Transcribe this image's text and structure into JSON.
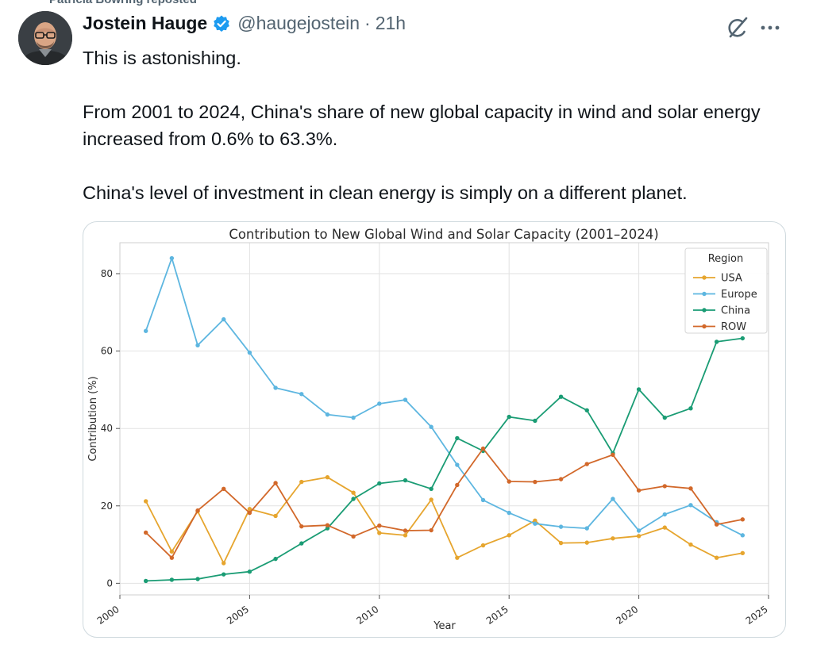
{
  "repost": {
    "label": "Patricia Bowring reposted"
  },
  "author": {
    "name": "Jostein Hauge",
    "handle": "@haugejostein",
    "separator": "·",
    "time": "21h",
    "verified_icon": "verified-badge-icon"
  },
  "actions": {
    "grok_icon": "grok-icon",
    "more_icon": "more-options-icon"
  },
  "tweet": {
    "line1": "This is astonishing.",
    "line2": "From 2001 to 2024, China's share of new global capacity in wind and solar energy increased from 0.6% to 63.3%.",
    "line3": "China's level of investment in clean energy is simply on a different planet."
  },
  "chart_data": {
    "type": "line",
    "title": "Contribution to New Global Wind and Solar Capacity (2001–2024)",
    "xlabel": "Year",
    "ylabel": "Contribution (%)",
    "xlim": [
      2000,
      2025
    ],
    "ylim": [
      -3,
      88
    ],
    "xticks": [
      2000,
      2005,
      2010,
      2015,
      2020,
      2025
    ],
    "yticks": [
      0,
      20,
      40,
      60,
      80
    ],
    "grid": true,
    "legend": {
      "title": "Region",
      "placement": "top-right"
    },
    "x": [
      2001,
      2002,
      2003,
      2004,
      2005,
      2006,
      2007,
      2008,
      2009,
      2010,
      2011,
      2012,
      2013,
      2014,
      2015,
      2016,
      2017,
      2018,
      2019,
      2020,
      2021,
      2022,
      2023,
      2024
    ],
    "series": [
      {
        "name": "USA",
        "color": "#E6A52E",
        "values": [
          21.2,
          8.2,
          18.6,
          5.2,
          19.2,
          17.4,
          26.2,
          27.4,
          23.4,
          13.0,
          12.4,
          21.6,
          6.6,
          9.8,
          12.4,
          16.2,
          10.4,
          10.5,
          11.6,
          12.2,
          14.4,
          10.0,
          6.6,
          7.8
        ]
      },
      {
        "name": "Europe",
        "color": "#5DB6E0",
        "values": [
          65.2,
          84.0,
          61.5,
          68.2,
          59.6,
          50.5,
          48.9,
          43.6,
          42.8,
          46.4,
          47.4,
          40.4,
          30.6,
          21.5,
          18.2,
          15.4,
          14.6,
          14.2,
          21.8,
          13.6,
          17.8,
          20.2,
          15.8,
          12.4
        ]
      },
      {
        "name": "China",
        "color": "#1A9C74",
        "values": [
          0.6,
          0.9,
          1.1,
          2.3,
          3.0,
          6.3,
          10.3,
          14.2,
          21.8,
          25.8,
          26.6,
          24.4,
          37.5,
          34.2,
          43.0,
          42.0,
          48.2,
          44.7,
          33.6,
          50.1,
          42.8,
          45.2,
          62.4,
          63.3
        ]
      },
      {
        "name": "ROW",
        "color": "#D2682A",
        "values": [
          13.1,
          6.6,
          18.8,
          24.4,
          18.2,
          25.9,
          14.7,
          15.0,
          12.1,
          14.9,
          13.6,
          13.7,
          25.4,
          34.8,
          26.3,
          26.2,
          26.9,
          30.8,
          33.2,
          24.0,
          25.1,
          24.5,
          15.2,
          16.5
        ]
      }
    ]
  }
}
